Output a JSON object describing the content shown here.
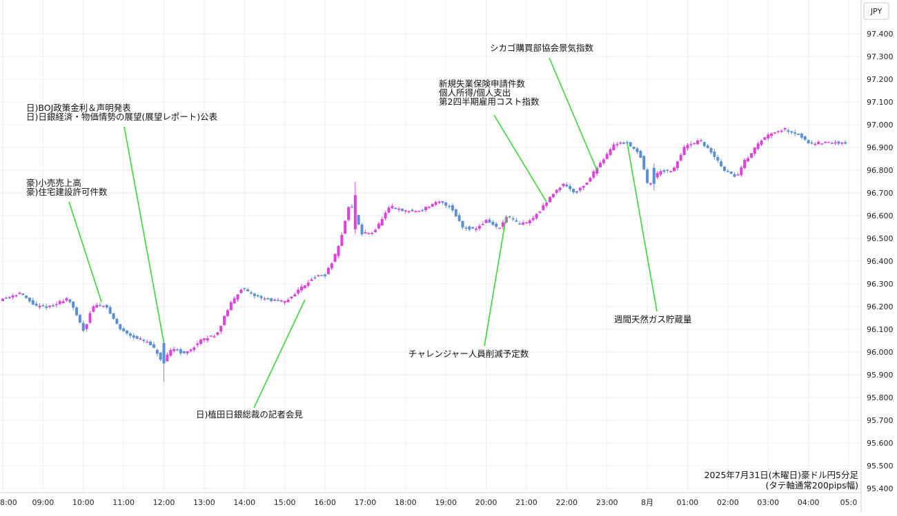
{
  "chart_data": {
    "type": "candlestick",
    "title": "2025年7月31日(木曜日)豪ドル円5分足",
    "subtitle": "(タテ軸通常200pips幅)",
    "currency_label": "JPY",
    "ylim": [
      95.4,
      97.5
    ],
    "y_ticks": [
      "97.400",
      "97.300",
      "97.200",
      "97.100",
      "97.000",
      "96.900",
      "96.800",
      "96.700",
      "96.600",
      "96.500",
      "96.400",
      "96.300",
      "96.200",
      "96.100",
      "96.000",
      "95.900",
      "95.800",
      "95.700",
      "95.600",
      "95.500",
      "95.400"
    ],
    "x_ticks": [
      {
        "label": "8:00",
        "hour": 8
      },
      {
        "label": "09:00",
        "hour": 9
      },
      {
        "label": "10:00",
        "hour": 10
      },
      {
        "label": "11:00",
        "hour": 11
      },
      {
        "label": "12:00",
        "hour": 12
      },
      {
        "label": "13:00",
        "hour": 13
      },
      {
        "label": "14:00",
        "hour": 14
      },
      {
        "label": "15:00",
        "hour": 15
      },
      {
        "label": "16:00",
        "hour": 16
      },
      {
        "label": "17:00",
        "hour": 17
      },
      {
        "label": "18:00",
        "hour": 18
      },
      {
        "label": "19:00",
        "hour": 19
      },
      {
        "label": "20:00",
        "hour": 20
      },
      {
        "label": "21:00",
        "hour": 21
      },
      {
        "label": "22:00",
        "hour": 22
      },
      {
        "label": "23:00",
        "hour": 23
      },
      {
        "label": "8月",
        "hour": 24
      },
      {
        "label": "01:00",
        "hour": 25
      },
      {
        "label": "02:00",
        "hour": 26
      },
      {
        "label": "03:00",
        "hour": 27
      },
      {
        "label": "04:00",
        "hour": 28
      },
      {
        "label": "05:0",
        "hour": 29
      }
    ],
    "colors": {
      "up": "#e040e0",
      "down": "#5b8fd6",
      "annotation_line": "#33dd33",
      "grid": "#eeeeee"
    },
    "path": [
      [
        8.0,
        96.23
      ],
      [
        8.5,
        96.26
      ],
      [
        8.9,
        96.2
      ],
      [
        9.3,
        96.2
      ],
      [
        9.7,
        96.24
      ],
      [
        10.1,
        96.09
      ],
      [
        10.3,
        96.2
      ],
      [
        10.6,
        96.21
      ],
      [
        11.0,
        96.1
      ],
      [
        11.3,
        96.07
      ],
      [
        11.7,
        96.04
      ],
      [
        11.9,
        96.0
      ],
      [
        12.05,
        95.95
      ],
      [
        12.3,
        96.02
      ],
      [
        12.6,
        95.99
      ],
      [
        13.0,
        96.05
      ],
      [
        13.4,
        96.08
      ],
      [
        13.7,
        96.2
      ],
      [
        14.0,
        96.28
      ],
      [
        14.3,
        96.25
      ],
      [
        14.7,
        96.23
      ],
      [
        15.1,
        96.22
      ],
      [
        15.4,
        96.27
      ],
      [
        15.8,
        96.33
      ],
      [
        16.1,
        96.34
      ],
      [
        16.4,
        96.45
      ],
      [
        16.7,
        96.66
      ],
      [
        17.0,
        96.52
      ],
      [
        17.3,
        96.53
      ],
      [
        17.7,
        96.64
      ],
      [
        18.0,
        96.62
      ],
      [
        18.4,
        96.62
      ],
      [
        18.9,
        96.66
      ],
      [
        19.2,
        96.64
      ],
      [
        19.5,
        96.55
      ],
      [
        19.8,
        96.54
      ],
      [
        20.1,
        96.58
      ],
      [
        20.4,
        96.54
      ],
      [
        20.6,
        96.6
      ],
      [
        20.9,
        96.56
      ],
      [
        21.2,
        96.58
      ],
      [
        21.5,
        96.64
      ],
      [
        21.8,
        96.71
      ],
      [
        22.0,
        96.74
      ],
      [
        22.3,
        96.7
      ],
      [
        22.6,
        96.75
      ],
      [
        22.9,
        96.83
      ],
      [
        23.3,
        96.92
      ],
      [
        23.6,
        96.92
      ],
      [
        23.9,
        96.87
      ],
      [
        24.1,
        96.73
      ],
      [
        24.4,
        96.8
      ],
      [
        24.7,
        96.79
      ],
      [
        25.0,
        96.9
      ],
      [
        25.4,
        96.93
      ],
      [
        25.7,
        96.87
      ],
      [
        26.0,
        96.8
      ],
      [
        26.3,
        96.77
      ],
      [
        26.5,
        96.84
      ],
      [
        26.9,
        96.93
      ],
      [
        27.2,
        96.97
      ],
      [
        27.5,
        96.98
      ],
      [
        27.8,
        96.96
      ],
      [
        28.1,
        96.92
      ]
    ],
    "special_candles": [
      {
        "t": 12.0,
        "open": 96.04,
        "close": 95.95,
        "high": 96.05,
        "low": 95.87
      },
      {
        "t": 16.75,
        "open": 96.54,
        "close": 96.69,
        "high": 96.75,
        "low": 96.52
      },
      {
        "t": 24.2,
        "open": 96.81,
        "close": 96.74,
        "high": 96.83,
        "low": 96.71
      }
    ],
    "annotations": [
      {
        "lines": [
          "豪)小売売上高",
          "豪)住宅建設許可件数"
        ],
        "event_hour": 10.45,
        "event_price": 96.22
      },
      {
        "lines": [
          "日)BOJ政策金利＆声明発表",
          "日)日銀経済・物価情勢の展望(展望レポート)公表"
        ],
        "event_hour": 12.0,
        "event_price": 96.04
      },
      {
        "lines": [
          "日)植田日銀総裁の記者会見"
        ],
        "event_hour": 15.5,
        "event_price": 96.23
      },
      {
        "lines": [
          "チャレンジャー人員削減予定数"
        ],
        "event_hour": 20.5,
        "event_price": 96.6
      },
      {
        "lines": [
          "新規失業保険申請件数",
          "個人所得/個人支出",
          "第2四半期雇用コスト指数"
        ],
        "event_hour": 21.5,
        "event_price": 96.66
      },
      {
        "lines": [
          "シカゴ購買部協会景気指数"
        ],
        "event_hour": 22.75,
        "event_price": 96.8
      },
      {
        "lines": [
          "週間天然ガス貯蔵量"
        ],
        "event_hour": 23.5,
        "event_price": 96.92
      }
    ]
  }
}
